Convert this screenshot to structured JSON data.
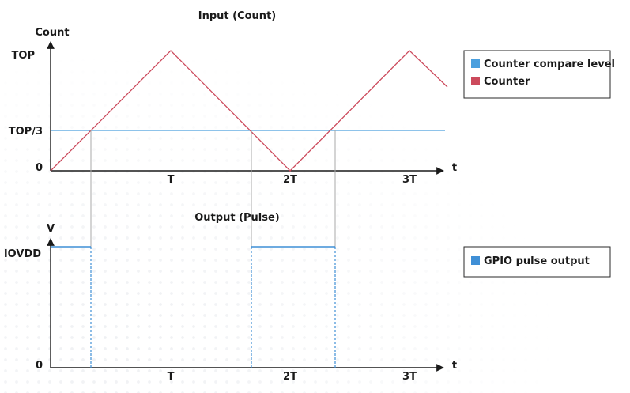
{
  "top_chart": {
    "title": "Input (Count)",
    "y_axis_label": "Count",
    "x_axis_label": "t",
    "y_ticks": {
      "top": "TOP",
      "third": "TOP/3",
      "zero": "0"
    },
    "x_ticks": [
      "T",
      "2T",
      "3T"
    ],
    "legend": {
      "compare": "Counter compare level",
      "counter": "Counter"
    }
  },
  "bottom_chart": {
    "title": "Output (Pulse)",
    "y_axis_label": "V",
    "x_axis_label": "t",
    "y_ticks": {
      "high": "IOVDD",
      "zero": "0"
    },
    "x_ticks": [
      "T",
      "2T",
      "3T"
    ],
    "legend": {
      "pulse": "GPIO pulse output"
    }
  },
  "colors": {
    "compare_level": "#4a9fde",
    "counter": "#cc4a5c",
    "pulse": "#3f8fd6",
    "axis": "#1a1a1a",
    "guide": "#a8a8a8"
  }
}
